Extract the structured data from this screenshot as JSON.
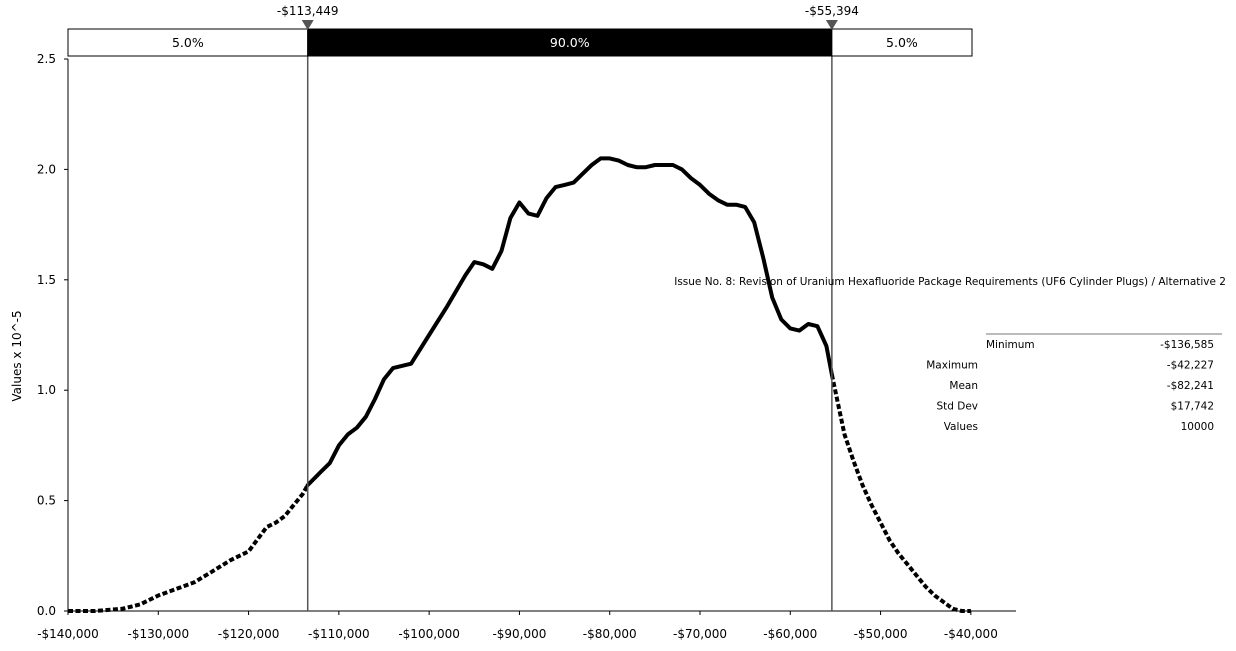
{
  "chart_data": {
    "type": "line",
    "title": "",
    "ylabel": "Values x 10^-5",
    "xlabel": "",
    "xlim": [
      -140000,
      -35000
    ],
    "ylim": [
      0,
      2.5
    ],
    "grid": false,
    "x_ticks": [
      "-$140,000",
      "-$130,000",
      "-$120,000",
      "-$110,000",
      "-$100,000",
      "-$90,000",
      "-$80,000",
      "-$70,000",
      "-$60,000",
      "-$50,000",
      "-$40,000"
    ],
    "x_tick_values": [
      -140000,
      -130000,
      -120000,
      -110000,
      -100000,
      -90000,
      -80000,
      -70000,
      -60000,
      -50000,
      -40000
    ],
    "y_ticks": [
      "0.0",
      "0.5",
      "1.0",
      "1.5",
      "2.0",
      "2.5"
    ],
    "y_tick_values": [
      0,
      0.5,
      1.0,
      1.5,
      2.0,
      2.5
    ],
    "series": [
      {
        "x": [
          -140000,
          -137000,
          -134000,
          -132000,
          -130000,
          -128000,
          -126000,
          -124000,
          -122000,
          -120000,
          -118000,
          -117000,
          -116000,
          -114000,
          -113449,
          -112000,
          -111000,
          -110000,
          -109000,
          -108000,
          -107000,
          -106000,
          -105000,
          -104000,
          -102000,
          -100000,
          -98000,
          -96000,
          -95000,
          -94000,
          -93000,
          -92000,
          -91000,
          -90000,
          -89000,
          -88000,
          -87000,
          -86000,
          -85000,
          -84000,
          -83000,
          -82000,
          -81000,
          -80000,
          -79000,
          -78000,
          -77000,
          -76000,
          -75000,
          -74000,
          -73000,
          -72000,
          -71000,
          -70000,
          -69000,
          -68000,
          -67000,
          -66000,
          -65000,
          -64000,
          -63000,
          -62000,
          -61000,
          -60000,
          -59000,
          -58000,
          -57000,
          -56000,
          -55394,
          -54000,
          -53000,
          -52000,
          -51000,
          -50000,
          -49000,
          -48000,
          -47000,
          -46000,
          -45000,
          -44000,
          -43000,
          -42000,
          -41000,
          -40000,
          -35000
        ],
        "y": [
          0,
          0,
          0.01,
          0.03,
          0.07,
          0.1,
          0.13,
          0.18,
          0.23,
          0.27,
          0.38,
          0.4,
          0.43,
          0.53,
          0.57,
          0.63,
          0.67,
          0.75,
          0.8,
          0.83,
          0.88,
          0.96,
          1.05,
          1.1,
          1.12,
          1.25,
          1.38,
          1.52,
          1.58,
          1.57,
          1.55,
          1.63,
          1.78,
          1.85,
          1.8,
          1.79,
          1.87,
          1.92,
          1.93,
          1.94,
          1.98,
          2.02,
          2.05,
          2.05,
          2.04,
          2.02,
          2.01,
          2.01,
          2.02,
          2.02,
          2.02,
          2.0,
          1.96,
          1.93,
          1.89,
          1.86,
          1.84,
          1.84,
          1.83,
          1.76,
          1.6,
          1.42,
          1.32,
          1.28,
          1.27,
          1.3,
          1.29,
          1.2,
          1.07,
          0.8,
          0.68,
          0.57,
          0.48,
          0.4,
          0.32,
          0.26,
          0.21,
          0.16,
          0.11,
          0.07,
          0.04,
          0.01,
          0,
          0,
          0
        ]
      }
    ],
    "markers": [
      {
        "x": -113449,
        "label": "-$113,449"
      },
      {
        "x": -55394,
        "label": "-$55,394"
      }
    ],
    "bands": [
      {
        "label": "5.0%",
        "fill": "#ffffff",
        "text_color": "#000000"
      },
      {
        "label": "90.0%",
        "fill": "#000000",
        "text_color": "#ffffff"
      },
      {
        "label": "5.0%",
        "fill": "#ffffff",
        "text_color": "#000000"
      }
    ],
    "annotation": "Issue No.  8:  Revision of Uranium Hexafluoride Package Requirements (UF6 Cylinder Plugs)  / Alternative 2",
    "stats": [
      {
        "label": "Minimum",
        "value": "-$136,585"
      },
      {
        "label": "Maximum",
        "value": "-$42,227"
      },
      {
        "label": "Mean",
        "value": "-$82,241"
      },
      {
        "label": "Std Dev",
        "value": "$17,742"
      },
      {
        "label": "Values",
        "value": "10000"
      }
    ],
    "colors": {
      "line": "#000000",
      "marker_line": "#555555",
      "marker_triangle": "#555555"
    }
  }
}
